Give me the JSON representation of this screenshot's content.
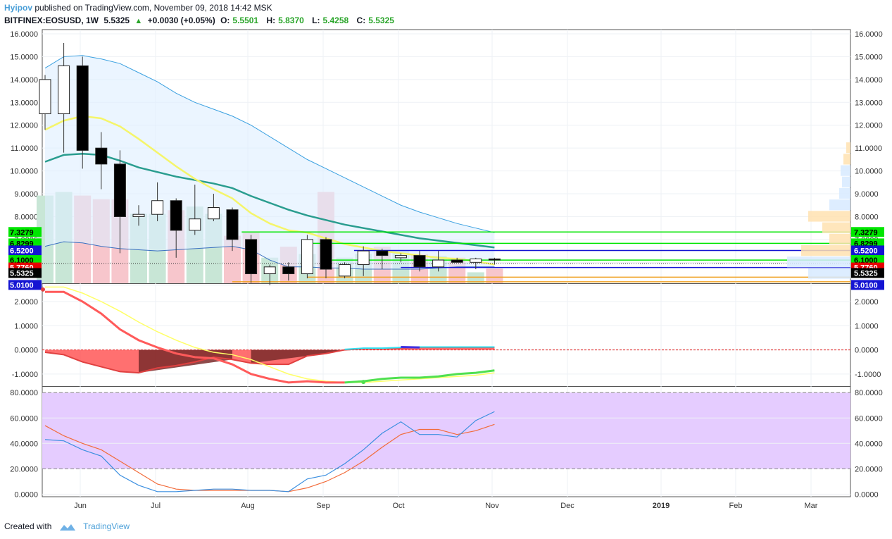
{
  "header": {
    "author": "Hyipov",
    "published": "published on TradingView.com, November 09, 2018 14:42 MSK",
    "symbol": "BITFINEX:EOSUSD, 1W",
    "last": "5.5325",
    "change": "+0.0030 (+0.05%)",
    "o_label": "O:",
    "o_value": "5.5501",
    "h_label": "H:",
    "h_value": "5.8370",
    "l_label": "L:",
    "l_value": "5.4258",
    "c_label": "C:",
    "c_value": "5.5325"
  },
  "footer": {
    "created_with": "Created with",
    "brand": "TradingView"
  },
  "colors": {
    "bull_candle": "#ffffff",
    "bear_candle": "#000000",
    "vol_up": "#c8e6d6",
    "vol_down": "#f7c6cc",
    "rsi_band": "#e5ccff",
    "rsi_line": "#3b8fe0",
    "rsi_signal": "#f26b3a",
    "macd_line": "#ff5a5a",
    "macd_signal": "#ffff66"
  },
  "chart_data": {
    "type": "candlestick",
    "x_ticks": [
      "Jun",
      "Jul",
      "Aug",
      "Sep",
      "Oct",
      "Nov",
      "Dec",
      "2019",
      "Feb",
      "Mar"
    ],
    "price_axis": {
      "ticks": [
        "16.0000",
        "15.0000",
        "14.0000",
        "13.0000",
        "12.0000",
        "11.0000",
        "10.0000",
        "9.0000",
        "8.0000",
        "7.0000",
        "6.0000",
        "5.0000"
      ],
      "ylim": [
        4.9,
        16.0
      ],
      "badges": [
        {
          "value": 7.3279,
          "label": "7.3279",
          "color": "#00e600",
          "text": "#000000"
        },
        {
          "value": 6.8299,
          "label": "6.8299",
          "color": "#00e600",
          "text": "#000000"
        },
        {
          "value": 6.52,
          "label": "6.5200",
          "color": "#1414d2",
          "text": "#ffffff"
        },
        {
          "value": 6.1,
          "label": "6.1000",
          "color": "#00e600",
          "text": "#000000"
        },
        {
          "value": 5.776,
          "label": "5.7760",
          "color": "#e60000",
          "text": "#ffffff"
        },
        {
          "value": 5.5325,
          "label": "5.5325",
          "color": "#000000",
          "text": "#ffffff"
        },
        {
          "value": 5.01,
          "label": "5.0100",
          "color": "#1414d2",
          "text": "#ffffff"
        }
      ]
    },
    "candles": [
      {
        "o": 12.5,
        "h": 14.2,
        "l": 11.8,
        "c": 14.0
      },
      {
        "o": 12.5,
        "h": 15.6,
        "l": 10.8,
        "c": 14.6
      },
      {
        "o": 14.6,
        "h": 15.0,
        "l": 10.1,
        "c": 10.9
      },
      {
        "o": 11.0,
        "h": 11.7,
        "l": 9.2,
        "c": 10.3
      },
      {
        "o": 10.3,
        "h": 10.9,
        "l": 6.4,
        "c": 8.0
      },
      {
        "o": 8.0,
        "h": 8.5,
        "l": 7.6,
        "c": 8.1
      },
      {
        "o": 8.1,
        "h": 9.5,
        "l": 7.8,
        "c": 8.7
      },
      {
        "o": 8.7,
        "h": 8.8,
        "l": 6.2,
        "c": 7.4
      },
      {
        "o": 7.4,
        "h": 9.4,
        "l": 7.2,
        "c": 7.9
      },
      {
        "o": 7.9,
        "h": 9.0,
        "l": 7.8,
        "c": 8.4
      },
      {
        "o": 8.3,
        "h": 8.4,
        "l": 6.5,
        "c": 7.0
      },
      {
        "o": 7.0,
        "h": 7.2,
        "l": 5.1,
        "c": 5.5
      },
      {
        "o": 5.5,
        "h": 5.9,
        "l": 5.0,
        "c": 5.8
      },
      {
        "o": 5.8,
        "h": 6.0,
        "l": 5.2,
        "c": 5.5
      },
      {
        "o": 5.5,
        "h": 7.2,
        "l": 5.3,
        "c": 7.0
      },
      {
        "o": 7.0,
        "h": 7.1,
        "l": 5.3,
        "c": 5.7
      },
      {
        "o": 5.4,
        "h": 6.0,
        "l": 5.3,
        "c": 5.9
      },
      {
        "o": 5.9,
        "h": 6.7,
        "l": 5.4,
        "c": 6.5
      },
      {
        "o": 6.5,
        "h": 6.6,
        "l": 5.7,
        "c": 6.3
      },
      {
        "o": 6.2,
        "h": 6.4,
        "l": 6.0,
        "c": 6.3
      },
      {
        "o": 6.3,
        "h": 6.5,
        "l": 5.6,
        "c": 5.8
      },
      {
        "o": 5.8,
        "h": 6.5,
        "l": 5.6,
        "c": 6.1
      },
      {
        "o": 6.1,
        "h": 6.2,
        "l": 6.0,
        "c": 6.0
      },
      {
        "o": 6.0,
        "h": 6.2,
        "l": 5.7,
        "c": 6.15
      },
      {
        "o": 6.15,
        "h": 6.2,
        "l": 5.9,
        "c": 6.1
      }
    ],
    "volume": [
      0.48,
      0.5,
      0.48,
      0.46,
      0.46,
      0.38,
      0.38,
      0.4,
      0.42,
      0.38,
      0.26,
      0.28,
      0.14,
      0.2,
      0.16,
      0.5,
      0.14,
      0.16,
      0.2,
      0.18,
      0.16,
      0.15,
      0.14,
      0.06,
      0.08
    ],
    "bb_upper": [
      14.5,
      15.0,
      15.05,
      14.9,
      14.7,
      14.3,
      13.9,
      13.4,
      13.0,
      12.7,
      12.4,
      12.0,
      11.5,
      11.0,
      10.5,
      10.1,
      9.7,
      9.3,
      8.9,
      8.5,
      8.2,
      7.95,
      7.7,
      7.5,
      7.3
    ],
    "sma": [
      10.4,
      10.7,
      10.75,
      10.7,
      10.45,
      10.15,
      9.95,
      9.75,
      9.6,
      9.45,
      9.25,
      8.9,
      8.6,
      8.3,
      8.05,
      7.85,
      7.65,
      7.5,
      7.35,
      7.2,
      7.05,
      6.95,
      6.85,
      6.75,
      6.65
    ],
    "ema": [
      11.8,
      12.2,
      12.4,
      12.3,
      11.95,
      11.4,
      10.8,
      10.2,
      9.65,
      9.2,
      8.8,
      8.15,
      7.7,
      7.4,
      7.3,
      7.05,
      6.8,
      6.65,
      6.5,
      6.4,
      6.3,
      6.2,
      6.15,
      6.05,
      5.9
    ],
    "bb_lower": [
      6.7,
      6.9,
      6.85,
      6.7,
      6.6,
      6.55,
      6.5,
      6.55,
      6.6,
      6.65,
      6.7,
      6.55,
      6.1,
      5.8,
      5.8,
      5.75,
      5.75,
      5.7,
      5.7,
      5.7,
      5.7,
      5.75,
      5.8,
      5.8,
      5.8
    ],
    "levels": [
      {
        "value": 7.3279,
        "from": 10.5,
        "color": "#00e600"
      },
      {
        "value": 6.8299,
        "from": 14.0,
        "color": "#00e600"
      },
      {
        "value": 6.52,
        "from": 16.5,
        "color": "#1414d2"
      },
      {
        "value": 6.1,
        "from": 15.0,
        "color": "#00e600"
      },
      {
        "value": 5.776,
        "from": 19.0,
        "color": "#1414d2"
      },
      {
        "value": 5.35,
        "from": 14.0,
        "color": "#f0a020"
      },
      {
        "value": 5.15,
        "from": 10.0,
        "color": "#f0a020"
      }
    ],
    "macd": {
      "ticks": [
        "2.0000",
        "1.0000",
        "0.0000",
        "-1.0000"
      ],
      "ylim": [
        -1.5,
        2.7
      ],
      "macd": [
        -0.1,
        -0.2,
        -0.5,
        -0.7,
        -0.9,
        -0.95,
        -0.75,
        -0.65,
        -0.5,
        -0.3,
        -0.4,
        -0.55,
        -0.6,
        -0.6,
        -0.25,
        -0.15,
        0.0,
        0.05,
        0.05,
        0.08,
        0.1,
        0.1,
        0.1,
        0.1,
        0.1
      ],
      "macd_lower": [
        2.4,
        2.4,
        2.0,
        1.5,
        0.85,
        0.4,
        0.1,
        -0.15,
        -0.3,
        -0.35,
        -0.6,
        -1.0,
        -1.2,
        -1.35,
        -1.3,
        -1.35,
        -1.35,
        -1.3,
        -1.2,
        -1.15,
        -1.15,
        -1.1,
        -1.0,
        -0.95,
        -0.85
      ],
      "signal": [
        2.6,
        2.6,
        2.35,
        2.0,
        1.6,
        1.15,
        0.75,
        0.4,
        0.1,
        -0.1,
        -0.2,
        -0.4,
        -0.7,
        -1.0,
        -1.2,
        -1.3,
        -1.35,
        -1.35,
        -1.3,
        -1.25,
        -1.2,
        -1.15,
        -1.1,
        -1.05,
        -0.95
      ]
    },
    "rsi": {
      "ticks": [
        "80.0000",
        "60.0000",
        "40.0000",
        "20.0000",
        "0.0000"
      ],
      "ylim": [
        -2,
        84
      ],
      "band": [
        20,
        80
      ],
      "rsi": [
        43,
        42,
        35,
        30,
        15,
        7,
        2,
        2,
        3,
        4,
        4,
        3,
        3,
        2,
        12,
        15,
        24,
        35,
        48,
        57,
        47,
        47,
        45,
        58,
        65
      ],
      "signal": [
        54,
        46,
        40,
        35,
        26,
        17,
        8,
        4,
        3,
        3,
        3,
        3,
        3,
        2,
        5,
        10,
        17,
        26,
        37,
        47,
        51,
        51,
        47,
        50,
        55
      ]
    }
  }
}
